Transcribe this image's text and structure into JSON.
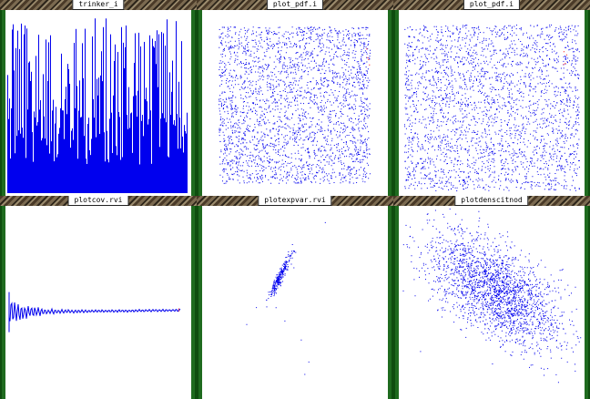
{
  "windows": [
    {
      "id": "w1",
      "title": "trinker_i",
      "kind": "bars"
    },
    {
      "id": "w2",
      "title": "plot_pdf.i",
      "kind": "uniform-scatter"
    },
    {
      "id": "w3",
      "title": "plot_pdf.i",
      "kind": "uniform-scatter"
    },
    {
      "id": "w4",
      "title": "plotcov.rvi",
      "kind": "convergence-line"
    },
    {
      "id": "w5",
      "title": "plotexpvar.rvi",
      "kind": "correlated-scatter"
    },
    {
      "id": "w6",
      "title": "plotdenscitnod",
      "kind": "blob-scatter"
    }
  ],
  "colors": {
    "data": "#0000ee",
    "accent": "#ff0000",
    "frame": "#1f6b1f",
    "plot_bg": "#ffffff"
  }
}
